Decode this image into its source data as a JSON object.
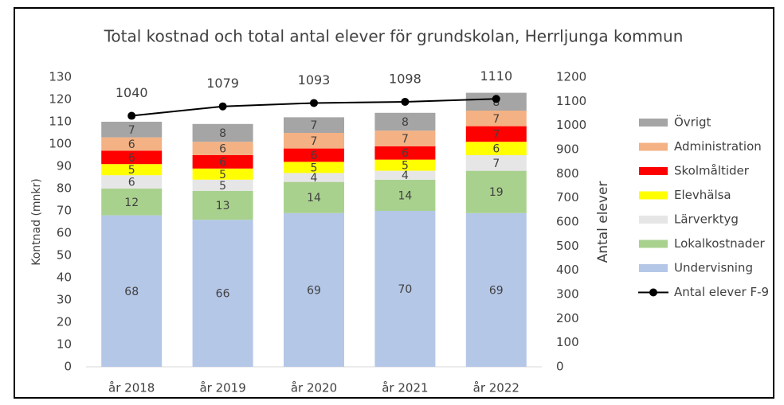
{
  "chart_data": {
    "type": "bar",
    "stacked": true,
    "title": "Total kostnad och total antal elever för grundskolan, Herrljunga kommun",
    "y_label": "Kontnad (mnkr)",
    "y2_label": "Antal elever",
    "categories": [
      "år 2018",
      "år 2019",
      "år 2020",
      "år 2021",
      "år 2022"
    ],
    "series": [
      {
        "name": "Undervisning",
        "color": "#b4c7e7",
        "values": [
          68,
          66,
          69,
          70,
          69
        ]
      },
      {
        "name": "Lokalkostnader",
        "color": "#a9d18e",
        "values": [
          12,
          13,
          14,
          14,
          19
        ]
      },
      {
        "name": "Lärverktyg",
        "color": "#e7e6e6",
        "values": [
          6,
          5,
          4,
          4,
          7
        ]
      },
      {
        "name": "Elevhälsa",
        "color": "#ffff00",
        "values": [
          5,
          5,
          5,
          5,
          6
        ]
      },
      {
        "name": "Skolmåltider",
        "color": "#ff0000",
        "values": [
          6,
          6,
          6,
          6,
          7
        ]
      },
      {
        "name": "Administration",
        "color": "#f4b183",
        "values": [
          6,
          6,
          7,
          7,
          7
        ]
      },
      {
        "name": "Övrigt",
        "color": "#a5a5a5",
        "values": [
          7,
          8,
          7,
          8,
          8
        ]
      },
      {
        "name": "Antal elever F-9",
        "color": "#000000",
        "type": "line",
        "axis": "y2",
        "values": [
          1040,
          1079,
          1093,
          1098,
          1110
        ]
      }
    ],
    "ylim": [
      0,
      130
    ],
    "yticks": [
      0,
      10,
      20,
      30,
      40,
      50,
      60,
      70,
      80,
      90,
      100,
      110,
      120,
      130
    ],
    "y2lim": [
      0,
      1200
    ],
    "y2ticks": [
      0,
      100,
      200,
      300,
      400,
      500,
      600,
      700,
      800,
      900,
      1000,
      1100,
      1200
    ],
    "grid": false,
    "legend": "right"
  }
}
